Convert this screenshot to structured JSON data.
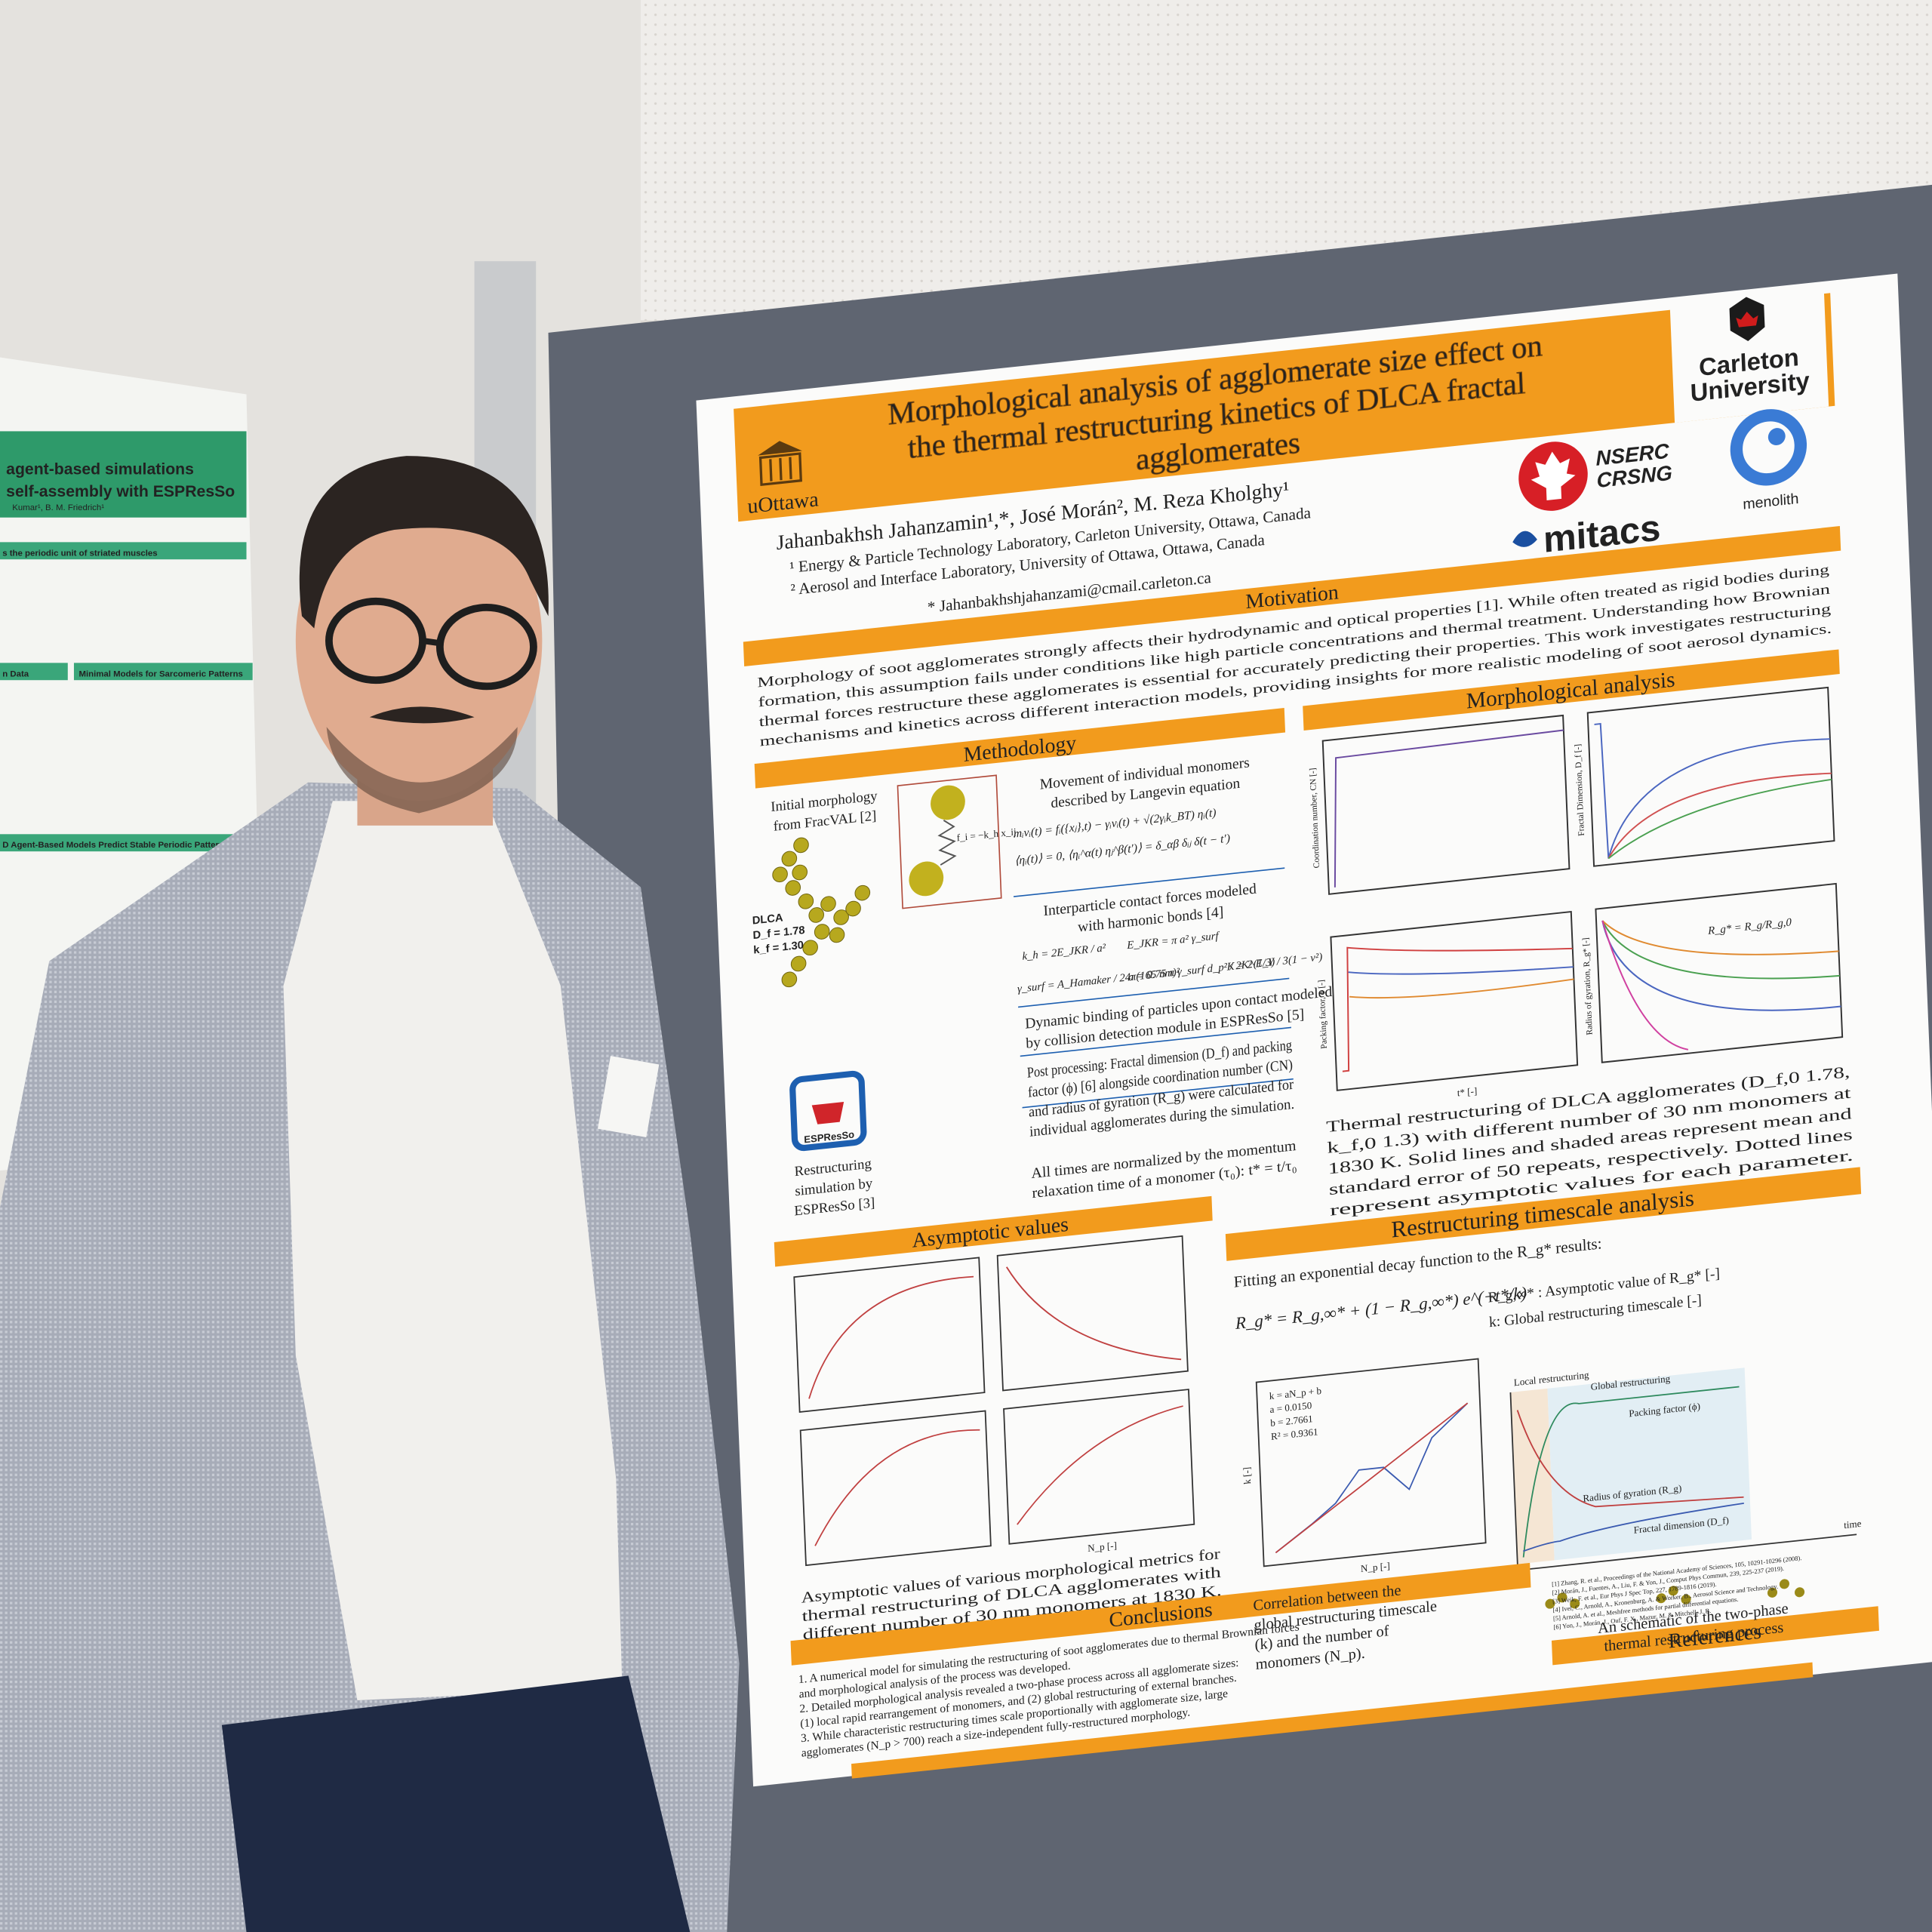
{
  "background_poster": {
    "title_lines": [
      "agent-based simulations",
      "self-assembly with ESPResSo"
    ],
    "authors": "Kumar¹, B. M. Friedrich¹",
    "headings": [
      "s the periodic unit of striated muscles",
      "n Data",
      "Minimal Models for Sarcomeric Patterns",
      "D Agent-Based Models Predict Stable Periodic Patterns"
    ]
  },
  "poster": {
    "title": [
      "Morphological analysis of agglomerate size effect on",
      "the thermal restructuring kinetics of DLCA fractal",
      "agglomerates"
    ],
    "logos": {
      "left": "uOttawa",
      "right": [
        "Carleton",
        "University"
      ],
      "nserc": [
        "NSERC",
        "CRSNG"
      ],
      "mitacs": "mitacs",
      "menolith": "menolith"
    },
    "authors": "Jahanbakhsh Jahanzamin¹,*, José Morán², M. Reza Kholghy¹",
    "affiliations": [
      "¹ Energy & Particle Technology Laboratory, Carleton University, Ottawa, Canada",
      "² Aerosol and Interface Laboratory, University of Ottawa, Ottawa, Canada"
    ],
    "email": "* Jahanbakhshjahanzami@cmail.carleton.ca",
    "motivation": {
      "heading": "Motivation",
      "text": [
        "Morphology of soot agglomerates strongly affects their hydrodynamic and optical properties [1]. While often treated as rigid bodies during",
        "formation, this assumption fails under conditions like high particle concentrations and thermal treatment. Understanding how Brownian",
        "thermal forces restructure these agglomerates is essential for accurately predicting their properties. This work investigates restructuring",
        "mechanisms and kinetics across different interaction models, providing insights for more realistic modeling of soot aerosol dynamics."
      ]
    },
    "methodology": {
      "heading": "Methodology",
      "initial": [
        "Initial morphology",
        "from FracVAL [2]"
      ],
      "dlca": [
        "DLCA",
        "D_f = 1.78",
        "k_f = 1.30"
      ],
      "spring": "f_i = −k_h x_ij",
      "espresso": "ESPResSo",
      "restructuring": [
        "Restructuring",
        "simulation by",
        "ESPResSo [3]"
      ],
      "langevin": [
        "Movement of individual monomers",
        "described by Langevin equation"
      ],
      "equations": [
        "mᵢvᵢ(t) = fᵢ({xⱼ},t) − γᵢvᵢ(t) + √(2γᵢk_BT) ηᵢ(t)",
        "⟨ηᵢ(t)⟩ = 0,    ⟨ηᵢ^α(t) ηⱼ^β(t′)⟩ = δ_αβ δᵢⱼ δ(t − t′)"
      ],
      "contact": [
        "Interparticle contact forces modeled",
        "with harmonic bonds [4]"
      ],
      "bond_equations": [
        "k_h = 2E_JKR / a²",
        "E_JKR = π a² γ_surf",
        "γ_surf = A_Hamaker / 24π(165 nm)²",
        "a = 0.75 π γ_surf d_p² / 2K^(1/3)",
        "K = 2 E_Y / 3(1 − ν²)"
      ],
      "binding": [
        "Dynamic binding of particles upon contact modeled",
        "by collision detection module in ESPResSo [5]"
      ],
      "post": [
        "Post processing: Fractal dimension (D_f) and packing",
        "factor (ϕ) [6] alongside coordination number (CN)",
        "and radius of gyration (R_g) were calculated for",
        "individual agglomerates during the simulation."
      ],
      "times": [
        "All times are normalized by the momentum",
        "relaxation time of a monomer (τ₀):  t* = t/τ₀"
      ]
    },
    "morphological": {
      "heading": "Morphological analysis",
      "axis_labels": [
        "Coordination number, CN [-]",
        "Fractal Dimension, D_f [-]",
        "Packing factor, ϕ [-]",
        "Radius of gyration, R_g* [-]"
      ],
      "x_label": "t* [-]",
      "ratio": "R_g* = R_g/R_g,0",
      "caption": [
        "Thermal restructuring of DLCA agglomerates (D_f,0 1.78,",
        "k_f,0 1.3) with different number of 30 nm monomers at",
        "1830 K. Solid lines and shaded areas represent mean and",
        "standard error of 50 repeats, respectively. Dotted lines",
        "represent asymptotic values for each parameter."
      ]
    },
    "asymptotic": {
      "heading": "Asymptotic values",
      "x_label": "N_p [-]",
      "caption": [
        "Asymptotic values of various morphological metrics for",
        "thermal restructuring of DLCA agglomerates with",
        "different number of 30 nm monomers at 1830 K."
      ]
    },
    "timescale": {
      "heading": "Restructuring timescale analysis",
      "intro": "Fitting an exponential decay function to the R_g* results:",
      "equation": "R_g* = R_g,∞* + (1 − R_g,∞*) e^(−t*/k)",
      "definitions": [
        "R_g,∞* : Asymptotic value of R_g* [-]",
        "k: Global restructuring timescale [-]"
      ],
      "fit": [
        "k = aN_p + b",
        "a = 0.0150",
        "b = 2.7661",
        "R² = 0.9361"
      ],
      "fit_x": "N_p [-]",
      "fit_y": "k [-]",
      "caption": [
        "Correlation between the",
        "global restructuring timescale",
        "(k) and the number of",
        "monomers (N_p)."
      ],
      "schematic": [
        "Local restructuring",
        "Global restructuring",
        "Packing factor (ϕ)",
        "Radius of gyration (R_g)",
        "Fractal dimension (D_f)",
        "time"
      ],
      "schematic_caption": [
        "An schematic of the two-phase",
        "thermal restructuring process"
      ]
    },
    "conclusions": {
      "heading": "Conclusions",
      "items": [
        "1. A numerical model for simulating the restructuring of soot agglomerates due to thermal Brownian forces",
        "    and morphological analysis of the process was developed.",
        "2. Detailed morphological analysis revealed a two-phase process across all agglomerate sizes:",
        "    (1) local rapid rearrangement of monomers, and (2) global restructuring of external branches.",
        "3. While characteristic restructuring times scale proportionally with agglomerate size, large",
        "    agglomerates (N_p > 700) reach a size-independent fully-restructured morphology."
      ]
    },
    "references": {
      "heading": "References",
      "items": [
        "[1] Zhang, R. et al., Proceedings of the National Academy of Sciences, 105, 10291-10296 (2008).",
        "[2] Morán, J., Fuentes, A., Liu, F. & Yon, J., Comput Phys Commun, 239, 225-237 (2019).",
        "[3] Weik, F. et al., Eur Phys J Spec Top, 227, 1789-1816 (2019).",
        "[4] Ivel, C., Arnold, A., Kronenburg, A. & Worker, B., Aerosol Science and Technology.",
        "[5] Arnold, A. et al., Meshfree methods for partial differential equations.",
        "[6] Yon, J., Morán, J., Ouf, F. X., Mazur, M. & Mitchell, J. B."
      ]
    }
  }
}
